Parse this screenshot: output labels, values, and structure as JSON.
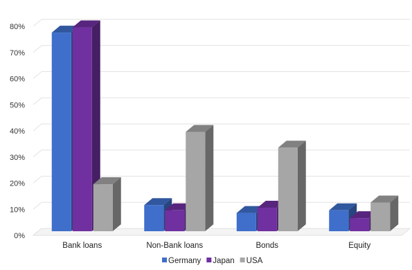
{
  "chart_data": {
    "type": "bar",
    "title": "",
    "categories": [
      "Bank loans",
      "Non-Bank loans",
      "Bonds",
      "Equity"
    ],
    "series": [
      {
        "name": "Germany",
        "values": [
          76,
          10,
          7,
          8
        ],
        "color": "#3f6fcb"
      },
      {
        "name": "Japan",
        "values": [
          78,
          8,
          9,
          5
        ],
        "color": "#7030a0"
      },
      {
        "name": "USA",
        "values": [
          18,
          38,
          32,
          11
        ],
        "color": "#a6a6a6"
      }
    ],
    "ylim": [
      0,
      80
    ],
    "y_ticks": [
      "0%",
      "10%",
      "20%",
      "30%",
      "40%",
      "50%",
      "60%",
      "70%",
      "80%"
    ],
    "y_unit": "%",
    "grid": true,
    "style": "3d-clustered-bar",
    "legend_position": "bottom"
  }
}
